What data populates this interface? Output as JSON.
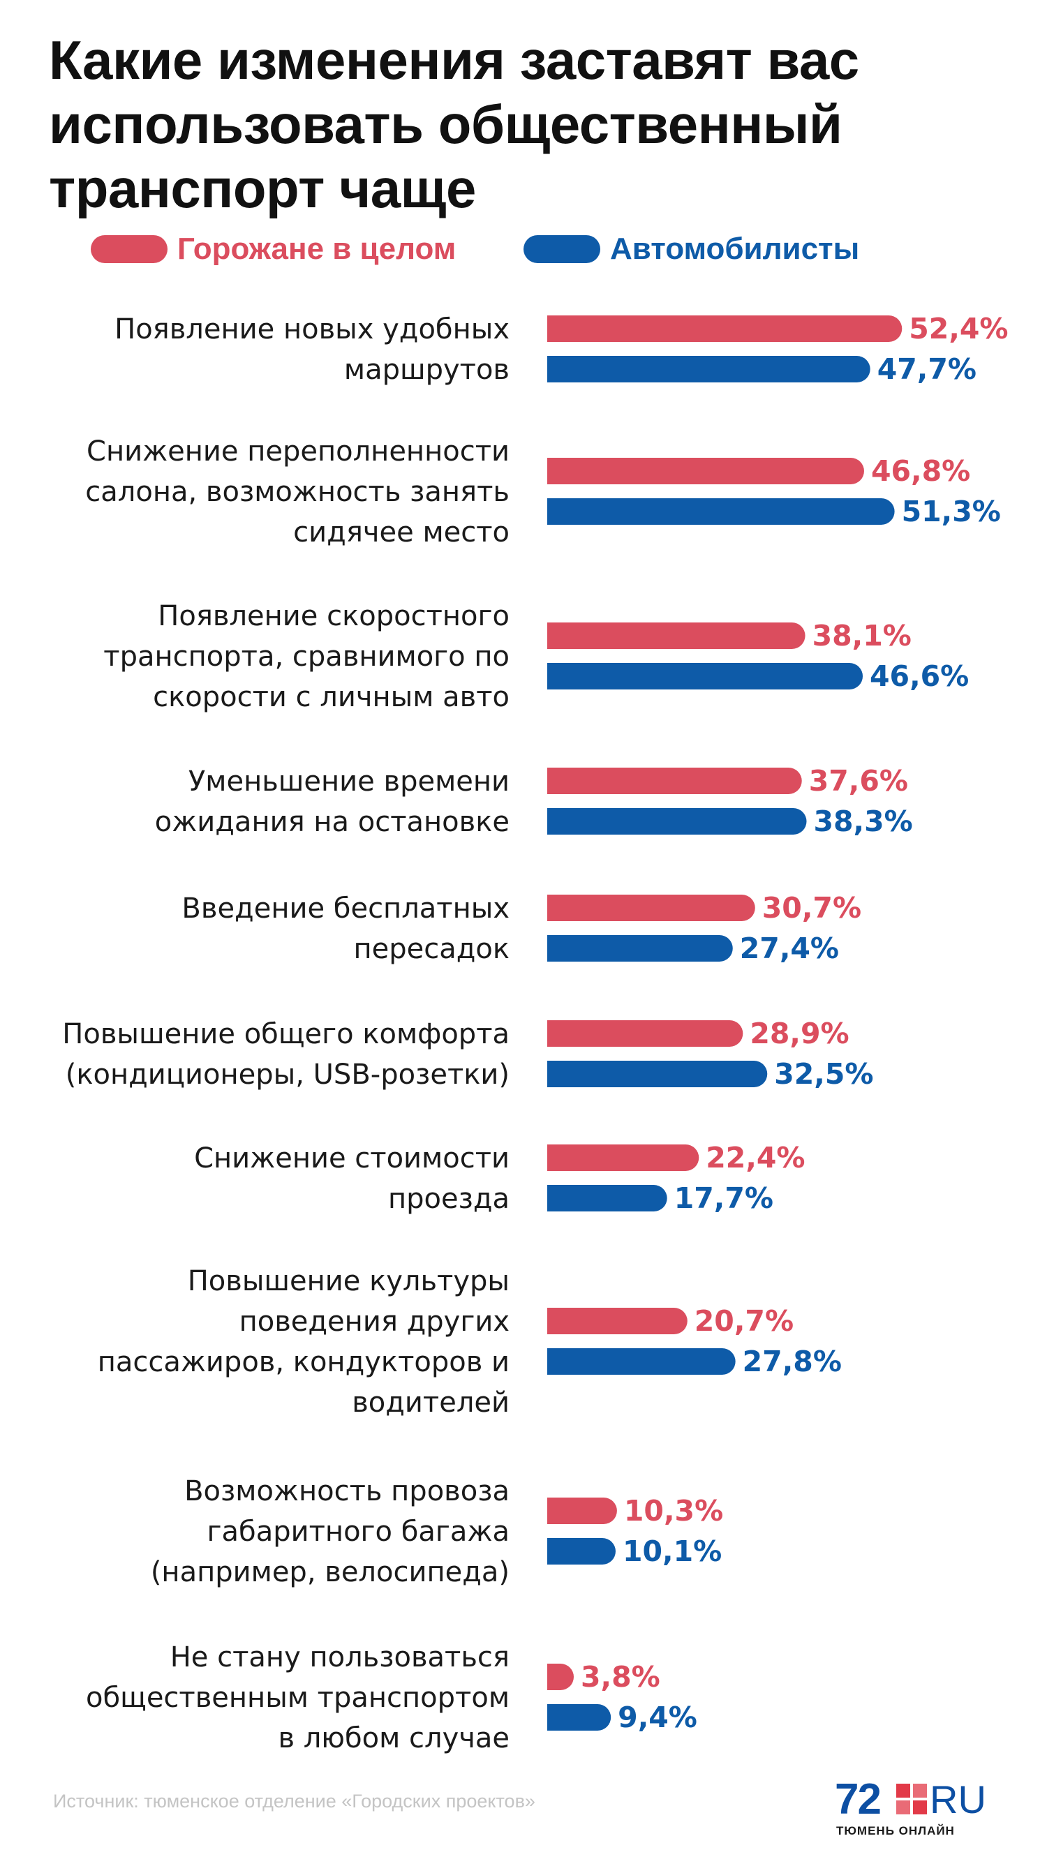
{
  "title": "Какие изменения заставят вас использовать общественный транспорт чаще",
  "colors": {
    "residents": "#db4d5e",
    "motorists": "#0e5ba8",
    "text": "#111111",
    "source": "#c4c4c4"
  },
  "legend": {
    "residents": "Горожане в целом",
    "motorists": "Автомобилисты"
  },
  "source": "Источник: тюменское отделение «Городских проектов»",
  "logo": {
    "number": "72",
    "domain": "RU",
    "subtitle": "ТЮМЕНЬ ОНЛАЙН"
  },
  "chart_data": {
    "type": "bar",
    "orientation": "horizontal",
    "title": "Какие изменения заставят вас использовать общественный транспорт чаще",
    "legend_position": "top",
    "grid": false,
    "xlim": [
      0,
      60
    ],
    "unit": "%",
    "categories": [
      [
        "Появление новых удобных",
        "маршрутов"
      ],
      [
        "Снижение переполненности",
        "салона, возможность занять",
        "сидячее место"
      ],
      [
        "Появление скоростного",
        "транспорта, сравнимого по",
        "скорости с личным авто"
      ],
      [
        "Уменьшение времени",
        "ожидания на остановке"
      ],
      [
        "Введение бесплатных",
        "пересадок"
      ],
      [
        "Повышение общего комфорта",
        "(кондиционеры, USB-розетки)"
      ],
      [
        "Снижение стоимости",
        "проезда"
      ],
      [
        "Повышение культуры",
        "поведения других",
        "пассажиров, кондукторов и",
        "водителей"
      ],
      [
        "Возможность провоза",
        "габаритного багажа",
        "(например, велосипеда)"
      ],
      [
        "Не стану пользоваться",
        "общественным транспортом",
        "в любом случае"
      ]
    ],
    "series": [
      {
        "name": "Горожане в целом",
        "color": "#db4d5e",
        "values": [
          52.4,
          46.8,
          38.1,
          37.6,
          30.7,
          28.9,
          22.4,
          20.7,
          10.3,
          3.8
        ],
        "labels": [
          "52,4%",
          "46,8%",
          "38,1%",
          "37,6%",
          "30,7%",
          "28,9%",
          "22,4%",
          "20,7%",
          "10,3%",
          "3,8%"
        ]
      },
      {
        "name": "Автомобилисты",
        "color": "#0e5ba8",
        "values": [
          47.7,
          51.3,
          46.6,
          38.3,
          27.4,
          32.5,
          17.7,
          27.8,
          10.1,
          9.4
        ],
        "labels": [
          "47,7%",
          "51,3%",
          "46,6%",
          "38,3%",
          "27,4%",
          "32,5%",
          "17,7%",
          "27,8%",
          "10,1%",
          "9,4%"
        ]
      }
    ]
  }
}
